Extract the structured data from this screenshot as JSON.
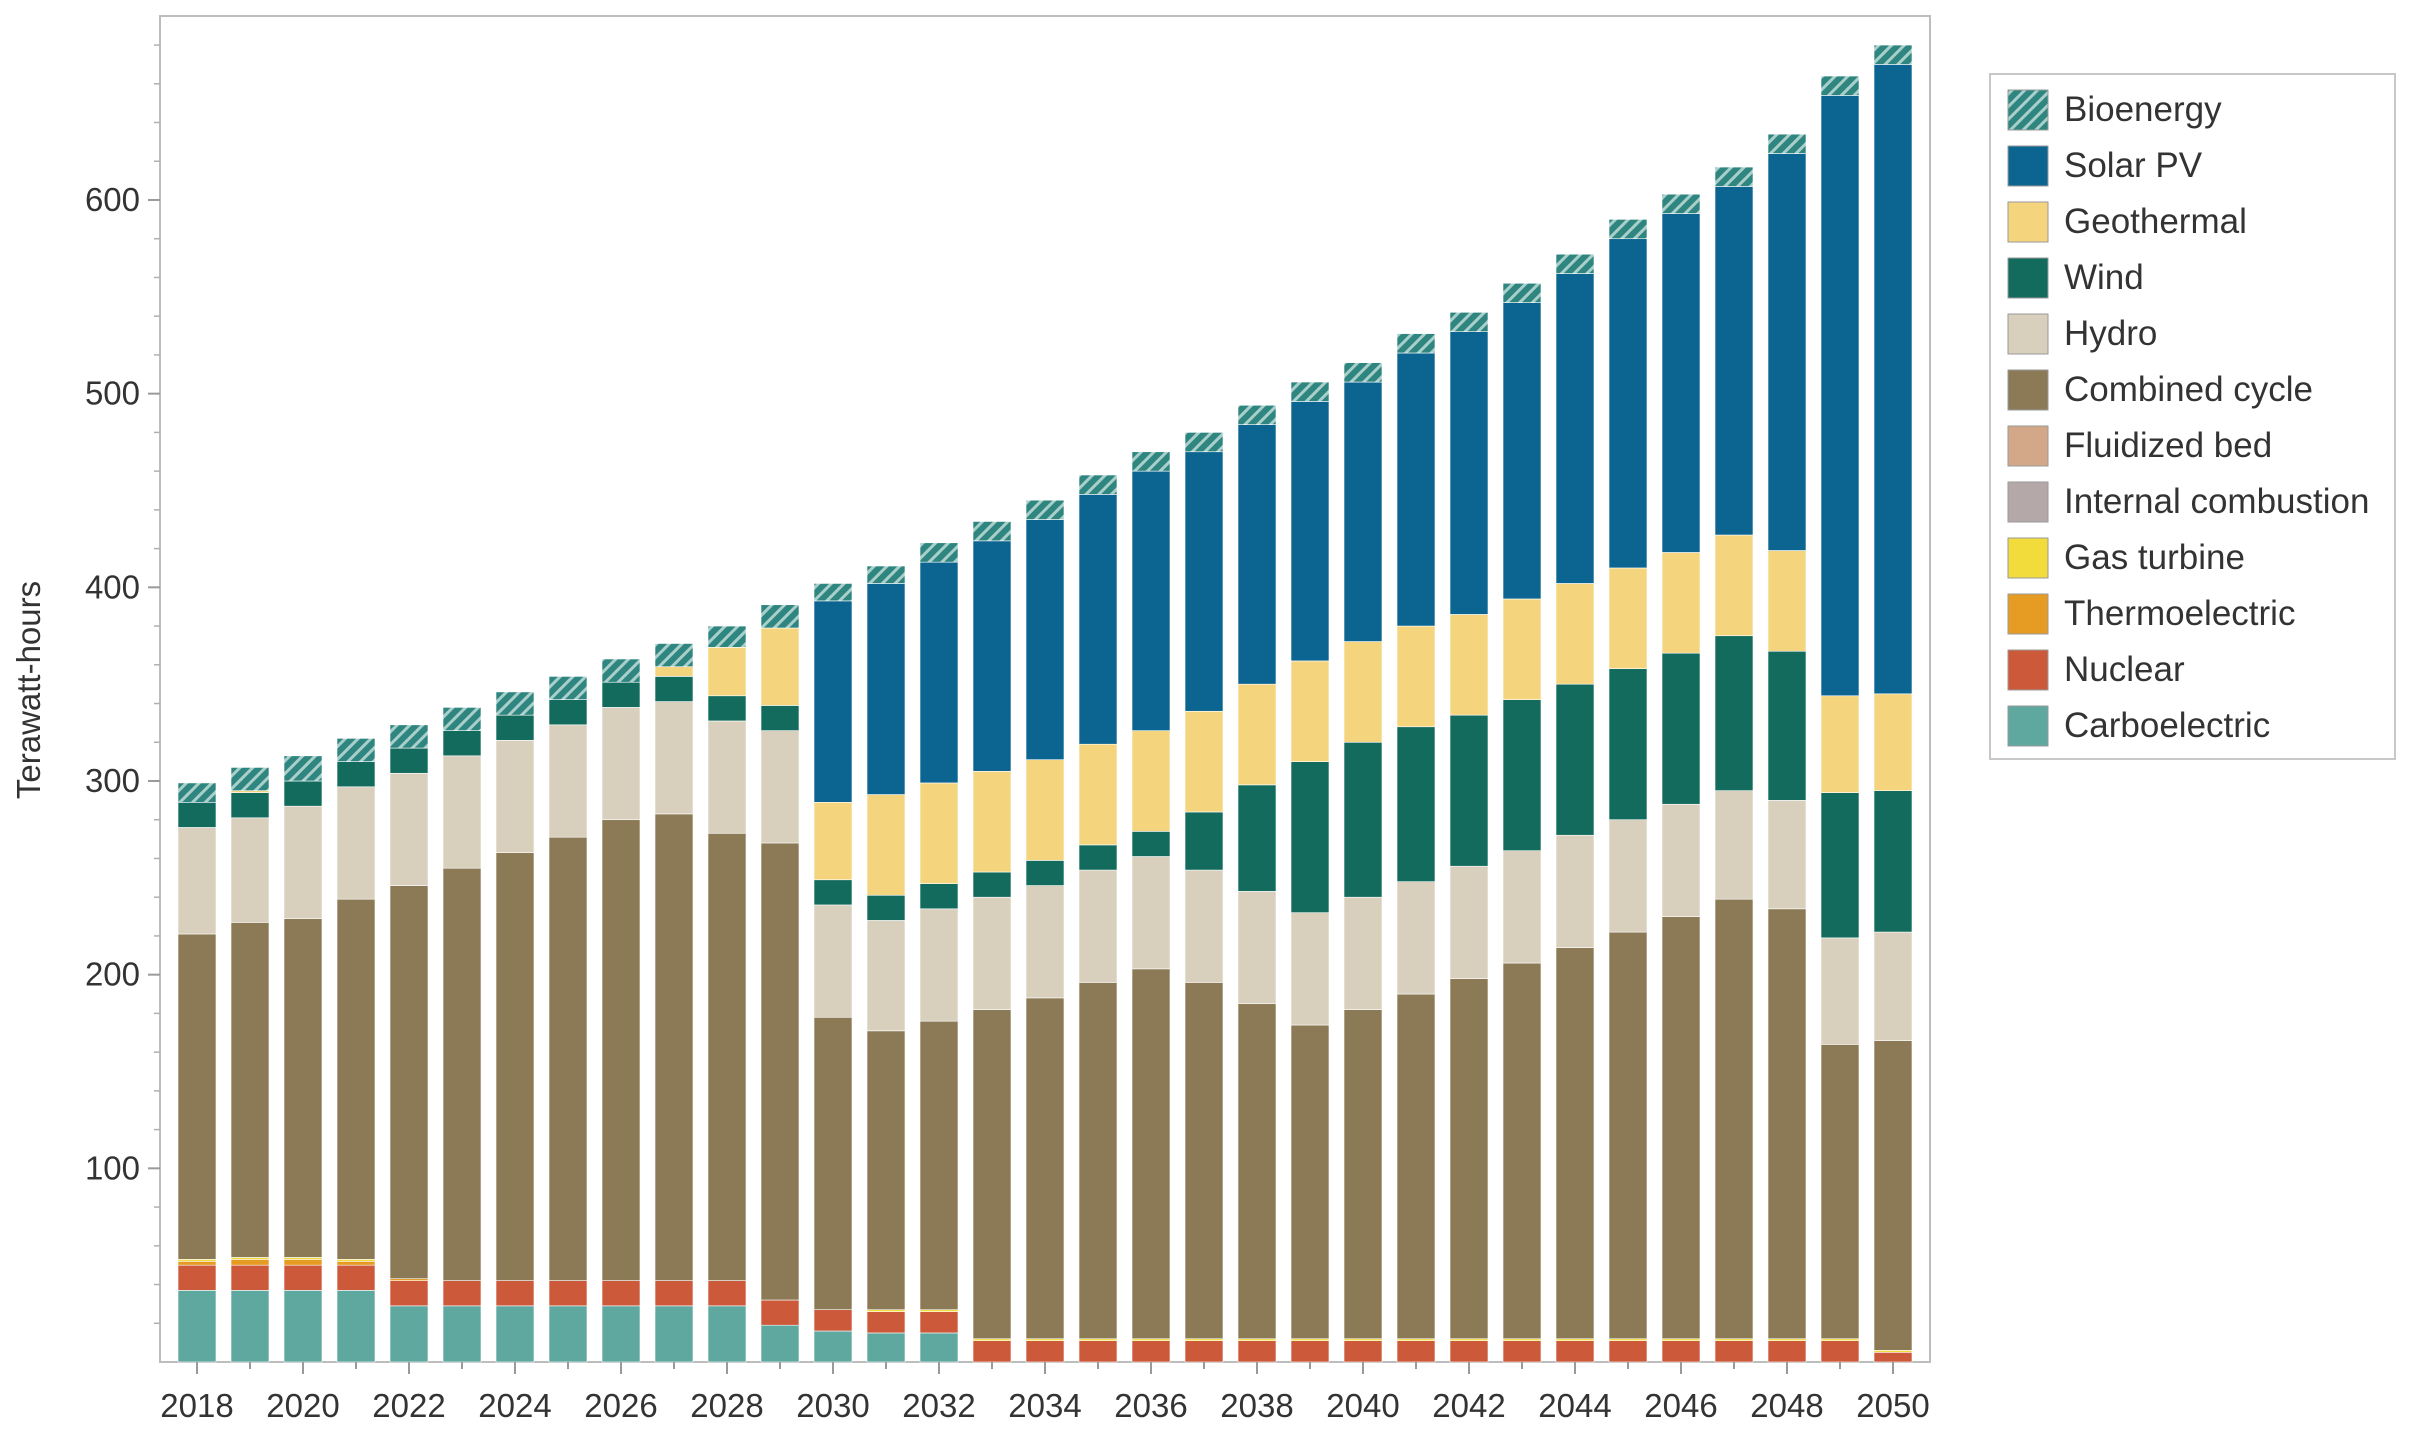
{
  "chart_data": {
    "type": "stacked-bar",
    "ylabel": "Terawatt-hours",
    "xlabel": "",
    "ylim": [
      0,
      695
    ],
    "yticks": [
      100,
      200,
      300,
      400,
      500,
      600
    ],
    "x_tick_labels": [
      "2018",
      "2020",
      "2022",
      "2024",
      "2026",
      "2028",
      "2030",
      "2032",
      "2034",
      "2036",
      "2038",
      "2040",
      "2042",
      "2044",
      "2046",
      "2048",
      "2050"
    ],
    "categories": [
      "2018",
      "2019",
      "2020",
      "2021",
      "2022",
      "2023",
      "2024",
      "2025",
      "2026",
      "2027",
      "2028",
      "2029",
      "2030",
      "2031",
      "2032",
      "2033",
      "2034",
      "2035",
      "2036",
      "2037",
      "2038",
      "2039",
      "2040",
      "2041",
      "2042",
      "2043",
      "2044",
      "2045",
      "2046",
      "2047",
      "2048",
      "2049",
      "2050"
    ],
    "legend_position": "right",
    "series": [
      {
        "name": "Carboelectric",
        "color": "#5fa8a0",
        "pattern": "none",
        "values": [
          37,
          37,
          37,
          37,
          29,
          29,
          29,
          29,
          29,
          29,
          29,
          19,
          16,
          15,
          15,
          0,
          0,
          0,
          0,
          0,
          0,
          0,
          0,
          0,
          0,
          0,
          0,
          0,
          0,
          0,
          0,
          0,
          0
        ]
      },
      {
        "name": "Nuclear",
        "color": "#cc5a3a",
        "pattern": "none",
        "values": [
          13,
          13,
          13,
          13,
          13,
          13,
          13,
          13,
          13,
          13,
          13,
          13,
          11,
          11,
          11,
          11,
          11,
          11,
          11,
          11,
          11,
          11,
          11,
          11,
          11,
          11,
          11,
          11,
          11,
          11,
          11,
          11,
          5
        ]
      },
      {
        "name": "Thermoelectric",
        "color": "#e69b22",
        "pattern": "none",
        "values": [
          2,
          3,
          3,
          2,
          1,
          0,
          0,
          0,
          0,
          0,
          0,
          0,
          0,
          0,
          0,
          0,
          0,
          0,
          0,
          0,
          0,
          0,
          0,
          0,
          0,
          0,
          0,
          0,
          0,
          0,
          0,
          0,
          0
        ]
      },
      {
        "name": "Gas turbine",
        "color": "#f2dc3c",
        "pattern": "none",
        "values": [
          1,
          1,
          1,
          1,
          0,
          0,
          0,
          0,
          0,
          0,
          0,
          0,
          0,
          1,
          1,
          1,
          1,
          1,
          1,
          1,
          1,
          1,
          1,
          1,
          1,
          1,
          1,
          1,
          1,
          1,
          1,
          1,
          1
        ]
      },
      {
        "name": "Internal combustion",
        "color": "#b5a8a8",
        "pattern": "none",
        "values": [
          0,
          0,
          0,
          0,
          0,
          0,
          0,
          0,
          0,
          0,
          0,
          0,
          0,
          0,
          0,
          0,
          0,
          0,
          0,
          0,
          0,
          0,
          0,
          0,
          0,
          0,
          0,
          0,
          0,
          0,
          0,
          0,
          0
        ]
      },
      {
        "name": "Fluidized bed",
        "color": "#d2a888",
        "pattern": "none",
        "values": [
          0,
          0,
          0,
          0,
          0,
          0,
          0,
          0,
          0,
          0,
          0,
          0,
          0,
          0,
          0,
          0,
          0,
          0,
          0,
          0,
          0,
          0,
          0,
          0,
          0,
          0,
          0,
          0,
          0,
          0,
          0,
          0,
          0
        ]
      },
      {
        "name": "Combined cycle",
        "color": "#8b7a55",
        "pattern": "none",
        "values": [
          168,
          173,
          175,
          186,
          203,
          213,
          221,
          229,
          238,
          241,
          231,
          236,
          151,
          144,
          149,
          170,
          176,
          184,
          191,
          184,
          173,
          162,
          170,
          178,
          186,
          194,
          202,
          210,
          218,
          227,
          222,
          152,
          160
        ]
      },
      {
        "name": "Hydro",
        "color": "#d8cfbc",
        "pattern": "none",
        "values": [
          55,
          54,
          58,
          58,
          58,
          58,
          58,
          58,
          58,
          58,
          58,
          58,
          58,
          57,
          58,
          58,
          58,
          58,
          58,
          58,
          58,
          58,
          58,
          58,
          58,
          58,
          58,
          58,
          58,
          56,
          56,
          55,
          56
        ]
      },
      {
        "name": "Wind",
        "color": "#126b5c",
        "pattern": "none",
        "values": [
          13,
          13,
          13,
          13,
          13,
          13,
          13,
          13,
          13,
          13,
          13,
          13,
          13,
          13,
          13,
          13,
          13,
          13,
          13,
          30,
          55,
          78,
          80,
          80,
          78,
          78,
          78,
          78,
          78,
          80,
          77,
          75,
          73
        ]
      },
      {
        "name": "Geothermal",
        "color": "#f5d47e",
        "pattern": "none",
        "values": [
          0,
          1,
          0,
          0,
          0,
          0,
          0,
          0,
          0,
          5,
          25,
          40,
          40,
          52,
          52,
          52,
          52,
          52,
          52,
          52,
          52,
          52,
          52,
          52,
          52,
          52,
          52,
          52,
          52,
          52,
          52,
          50,
          50
        ]
      },
      {
        "name": "Solar PV",
        "color": "#0c6590",
        "pattern": "none",
        "values": [
          0,
          0,
          0,
          0,
          0,
          0,
          0,
          0,
          0,
          0,
          0,
          0,
          104,
          109,
          114,
          119,
          124,
          129,
          134,
          134,
          134,
          134,
          134,
          141,
          146,
          153,
          160,
          170,
          175,
          180,
          205,
          310,
          325
        ]
      },
      {
        "name": "Bioenergy",
        "color": "#2f857f",
        "pattern": "hatch",
        "values": [
          10,
          12,
          13,
          12,
          12,
          12,
          12,
          12,
          12,
          12,
          11,
          12,
          9,
          9,
          10,
          10,
          10,
          10,
          10,
          10,
          10,
          10,
          10,
          10,
          10,
          10,
          10,
          10,
          10,
          10,
          10,
          10,
          10
        ]
      }
    ]
  }
}
